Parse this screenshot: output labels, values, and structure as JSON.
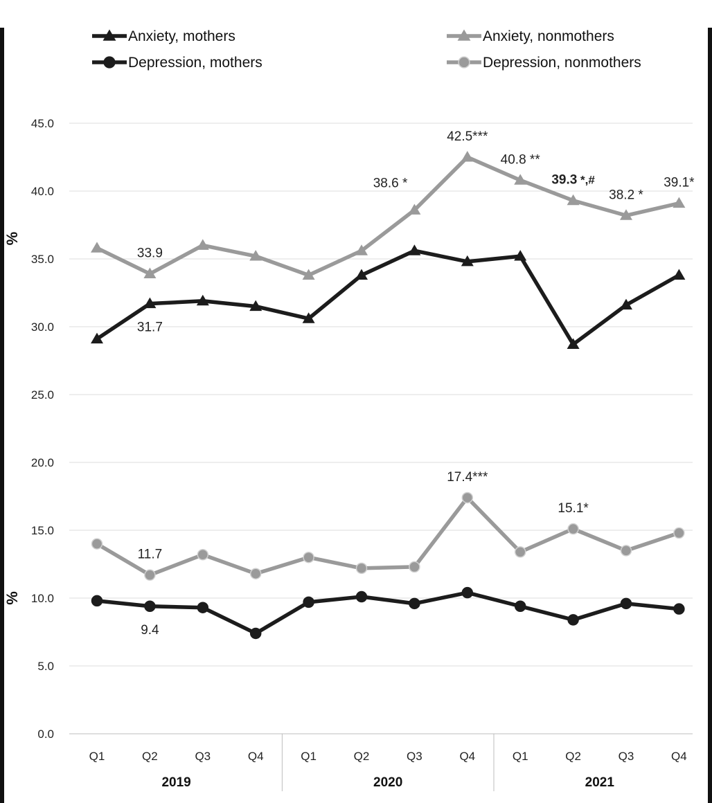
{
  "chart_data": {
    "type": "line",
    "ylabel": "%",
    "ylim": [
      0,
      45
    ],
    "yticks": [
      "0.0",
      "5.0",
      "10.0",
      "15.0",
      "20.0",
      "25.0",
      "30.0",
      "35.0",
      "40.0",
      "45.0"
    ],
    "ytick_values": [
      0,
      5,
      10,
      15,
      20,
      25,
      30,
      35,
      40,
      45
    ],
    "categories": [
      "Q1",
      "Q2",
      "Q3",
      "Q4",
      "Q1",
      "Q2",
      "Q3",
      "Q4",
      "Q1",
      "Q2",
      "Q3",
      "Q4"
    ],
    "years": [
      "2019",
      "2020",
      "2021"
    ],
    "grid": true,
    "legend_position": "top",
    "series": [
      {
        "name": "Anxiety, mothers",
        "color": "#1c1c1c",
        "marker": "triangle",
        "values": [
          29.1,
          31.7,
          31.9,
          31.5,
          30.6,
          33.8,
          35.6,
          34.8,
          35.2,
          28.7,
          31.6,
          33.8
        ]
      },
      {
        "name": "Anxiety, nonmothers",
        "color": "#9a9a9a",
        "marker": "triangle",
        "values": [
          35.8,
          33.9,
          36.0,
          35.2,
          33.8,
          35.6,
          38.6,
          42.5,
          40.8,
          39.3,
          38.2,
          39.1
        ]
      },
      {
        "name": "Depression, mothers",
        "color": "#1c1c1c",
        "marker": "circle",
        "values": [
          9.8,
          9.4,
          9.3,
          7.4,
          9.7,
          10.1,
          9.6,
          10.4,
          9.4,
          8.4,
          9.6,
          9.2
        ]
      },
      {
        "name": "Depression, nonmothers",
        "color": "#9a9a9a",
        "marker": "circle",
        "values": [
          14.0,
          11.7,
          13.2,
          11.8,
          13.0,
          12.2,
          12.3,
          17.4,
          13.4,
          15.1,
          13.5,
          14.8
        ]
      }
    ],
    "annotations": [
      {
        "series": 1,
        "index": 1,
        "text": "33.9",
        "pos": "above"
      },
      {
        "series": 0,
        "index": 1,
        "text": "31.7",
        "pos": "below"
      },
      {
        "series": 1,
        "index": 6,
        "text": "38.6 *",
        "pos": "upleft"
      },
      {
        "series": 1,
        "index": 7,
        "text": "42.5***",
        "pos": "above"
      },
      {
        "series": 1,
        "index": 8,
        "text": "40.8 **",
        "pos": "above"
      },
      {
        "series": 1,
        "index": 9,
        "bold_text": "39.3",
        "text": " *,#",
        "pos": "above"
      },
      {
        "series": 1,
        "index": 10,
        "text": "38.2 *",
        "pos": "above"
      },
      {
        "series": 1,
        "index": 11,
        "text": "39.1*",
        "pos": "above"
      },
      {
        "series": 3,
        "index": 1,
        "text": "11.7",
        "pos": "above"
      },
      {
        "series": 2,
        "index": 1,
        "text": "9.4",
        "pos": "below",
        "color": "#8a8a8a"
      },
      {
        "series": 3,
        "index": 7,
        "text": "17.4***",
        "pos": "above"
      },
      {
        "series": 3,
        "index": 9,
        "text": "15.1*",
        "pos": "above"
      }
    ]
  }
}
